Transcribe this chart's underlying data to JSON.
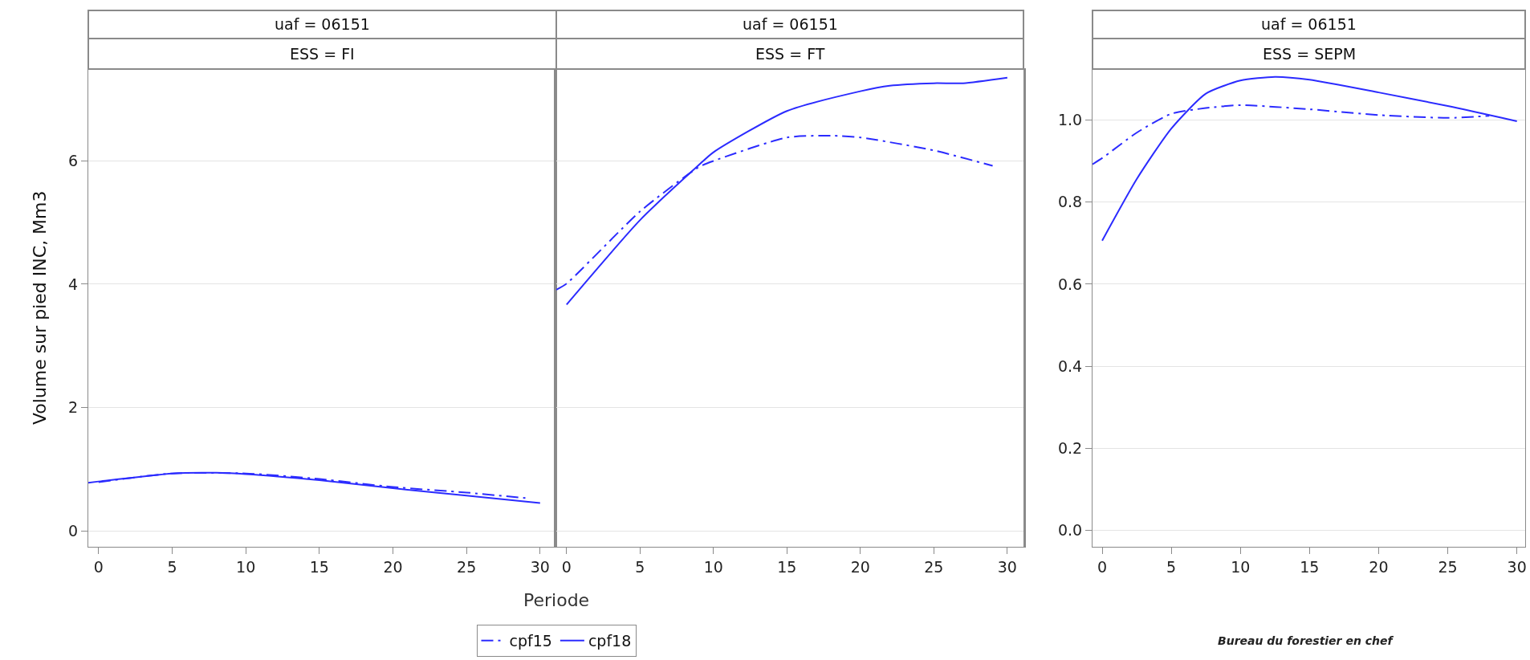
{
  "chart_data": [
    {
      "type": "line",
      "title": "uaf = 06151",
      "subtitle": "ESS = FI",
      "xlabel": "Periode",
      "ylabel": "Volume sur pied INC, Mm3",
      "xlim": [
        -0.7,
        31.1
      ],
      "xticks": [
        0,
        5,
        10,
        15,
        20,
        25,
        30
      ],
      "ylim": [
        -0.26,
        7.49
      ],
      "yticks": [
        0,
        2,
        4,
        6
      ],
      "grid": "y",
      "legend": "bottom",
      "series": [
        {
          "name": "cpf15",
          "color": "#2b2bff",
          "line_style": "dashed",
          "x": [
            0,
            5,
            10,
            15,
            20,
            25,
            29
          ],
          "values": [
            0.79,
            0.93,
            0.93,
            0.84,
            0.71,
            0.62,
            0.53
          ]
        },
        {
          "name": "cpf18",
          "color": "#2b2bff",
          "line_style": "solid",
          "x": [
            -0.7,
            0,
            5,
            8,
            10,
            15,
            20,
            25,
            30
          ],
          "values": [
            0.78,
            0.8,
            0.93,
            0.94,
            0.92,
            0.82,
            0.69,
            0.57,
            0.45
          ]
        }
      ]
    },
    {
      "type": "line",
      "title": "uaf = 06151",
      "subtitle": "ESS = FT",
      "tick_labels": "x",
      "xlim": [
        -0.7,
        31.1
      ],
      "xticks": [
        0,
        5,
        10,
        15,
        20,
        25,
        30
      ],
      "ylim": [
        -0.26,
        7.49
      ],
      "yticks": [
        0,
        2,
        4,
        6
      ],
      "grid": "y",
      "series": [
        {
          "color": "#2b2bff",
          "line_style": "dashed",
          "x": [
            -0.7,
            0,
            5,
            9,
            10,
            15,
            18,
            20,
            25,
            29
          ],
          "values": [
            3.91,
            4.01,
            5.18,
            5.9,
            6.0,
            6.38,
            6.41,
            6.38,
            6.17,
            5.92
          ]
        },
        {
          "color": "#2b2bff",
          "line_style": "solid",
          "x": [
            0,
            5,
            8.85,
            10,
            15,
            20,
            22,
            25,
            27,
            30
          ],
          "values": [
            3.67,
            5.04,
            5.9,
            6.14,
            6.81,
            7.13,
            7.22,
            7.26,
            7.26,
            7.35
          ]
        }
      ]
    },
    {
      "type": "line",
      "title": "uaf = 06151",
      "subtitle": "ESS = SEPM",
      "xlim": [
        -0.7,
        30.6
      ],
      "xticks": [
        0,
        5,
        10,
        15,
        20,
        25,
        30
      ],
      "ylim": [
        -0.04,
        1.124
      ],
      "yticks": [
        {
          "value": 0,
          "label": "0.0"
        },
        {
          "value": 0.2,
          "label": "0.2"
        },
        {
          "value": 0.4,
          "label": "0.4"
        },
        {
          "value": 0.6,
          "label": "0.6"
        },
        {
          "value": 0.8,
          "label": "0.8"
        },
        {
          "value": 1.0,
          "label": "1.0"
        }
      ],
      "grid": "y",
      "annotations": [
        "Bureau du forestier en chef"
      ],
      "series": [
        {
          "color": "#2b2bff",
          "line_style": "dashed",
          "x": [
            -0.7,
            0,
            2.5,
            5,
            7.5,
            10,
            15,
            20,
            25,
            28
          ],
          "values": [
            0.892,
            0.907,
            0.969,
            1.015,
            1.029,
            1.036,
            1.026,
            1.012,
            1.005,
            1.01
          ]
        },
        {
          "color": "#2b2bff",
          "line_style": "solid",
          "x": [
            0,
            2.5,
            5,
            7.5,
            10,
            12.5,
            15,
            20,
            25,
            30
          ],
          "values": [
            0.706,
            0.856,
            0.979,
            1.064,
            1.096,
            1.105,
            1.098,
            1.067,
            1.034,
            0.997
          ]
        }
      ]
    }
  ]
}
